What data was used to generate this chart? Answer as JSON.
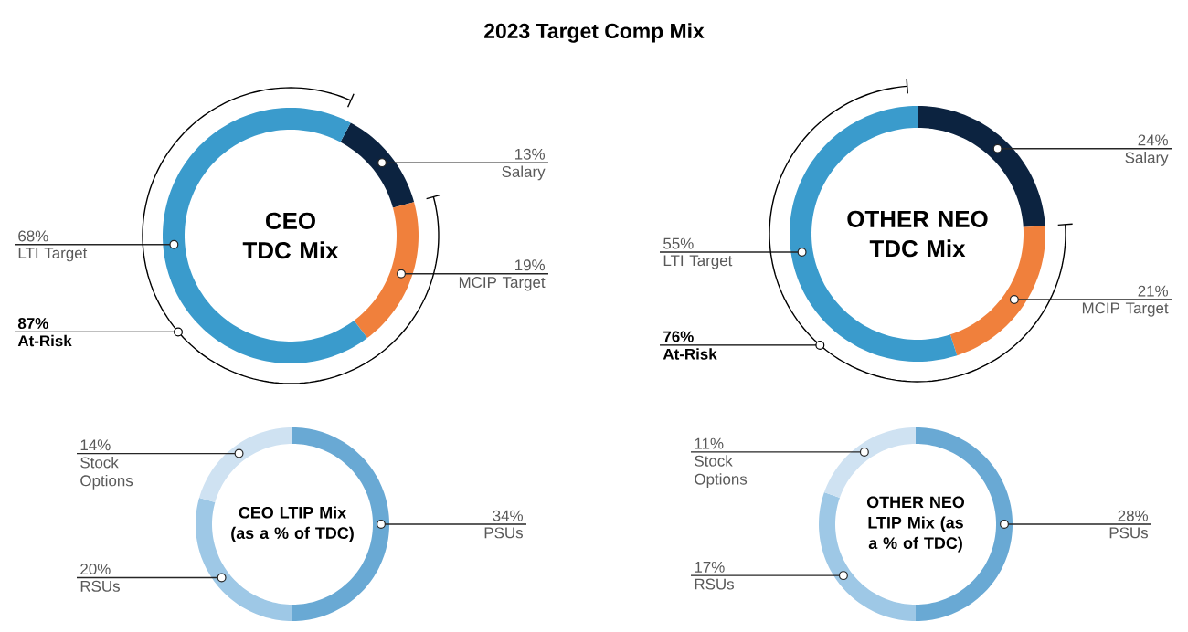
{
  "chart_data": [
    {
      "type": "donut",
      "title": "2023 Target Comp Mix",
      "subtitle": "CEO TDC Mix",
      "categories": [
        "Salary",
        "MCIP Target",
        "LTI Target"
      ],
      "values": [
        13,
        19,
        68
      ],
      "value_labels": [
        "13%",
        "19%",
        "68%"
      ],
      "colors": [
        "#0c2340",
        "#f0803c",
        "#3a9bcc"
      ],
      "annotations": [
        "87%",
        "At-Risk"
      ]
    },
    {
      "type": "donut",
      "subtitle": "OTHER NEO TDC Mix",
      "categories": [
        "Salary",
        "MCIP Target",
        "LTI Target"
      ],
      "values": [
        24,
        21,
        55
      ],
      "value_labels": [
        "24%",
        "21%",
        "55%"
      ],
      "colors": [
        "#0c2340",
        "#f0803c",
        "#3a9bcc"
      ],
      "annotations": [
        "76%",
        "At-Risk"
      ]
    },
    {
      "type": "donut",
      "subtitle": "CEO LTIP Mix (as a % of TDC)",
      "categories": [
        "PSUs",
        "RSUs",
        "Stock Options"
      ],
      "values": [
        34,
        20,
        14
      ],
      "value_labels": [
        "34%",
        "20%",
        "14%"
      ],
      "colors": [
        "#69a9d4",
        "#9ec8e6",
        "#cfe2f2"
      ]
    },
    {
      "type": "donut",
      "subtitle": "OTHER NEO LTIP Mix (as a % of TDC)",
      "categories": [
        "PSUs",
        "RSUs",
        "Stock Options"
      ],
      "values": [
        28,
        17,
        11
      ],
      "value_labels": [
        "28%",
        "17%",
        "11%"
      ],
      "colors": [
        "#69a9d4",
        "#9ec8e6",
        "#cfe2f2"
      ]
    }
  ]
}
